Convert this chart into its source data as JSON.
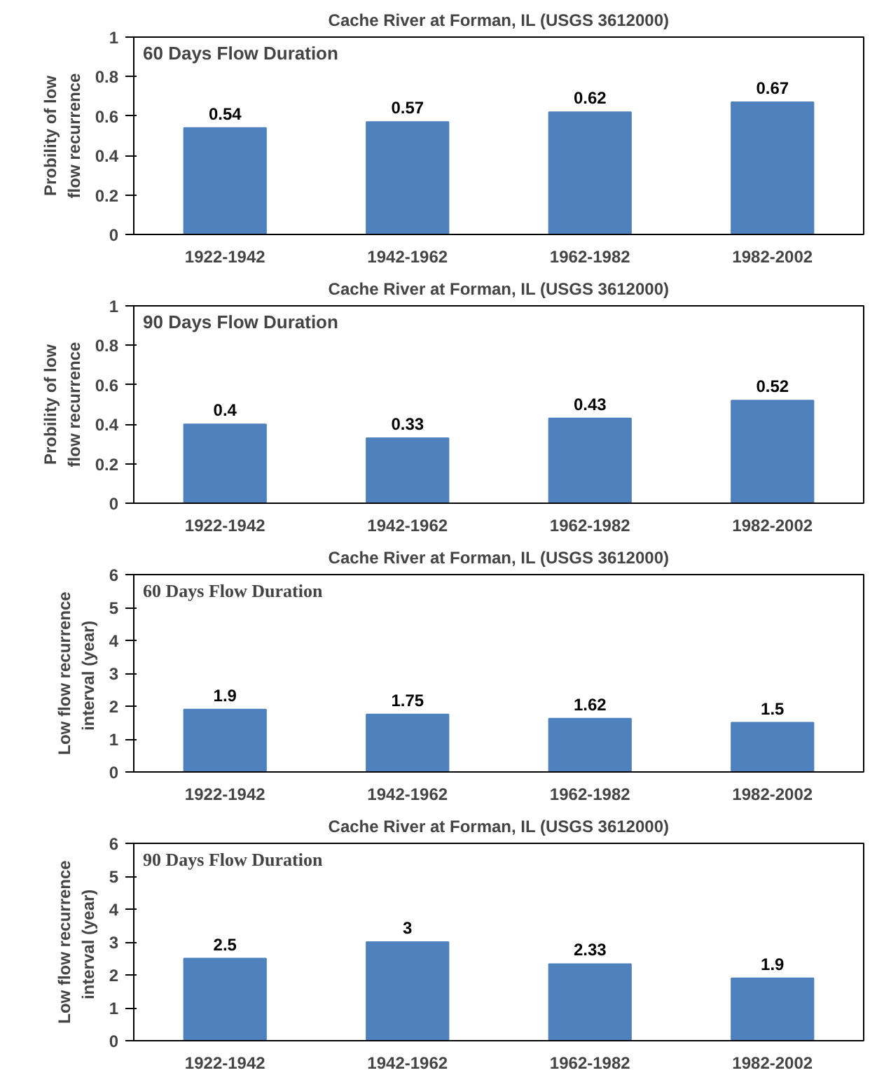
{
  "chart_data": [
    {
      "type": "bar",
      "title": "Cache River at Forman, IL (USGS 3612000)",
      "ylabel": "Probility of low\nflow recurrence",
      "categories": [
        "1922-1942",
        "1942-1962",
        "1962-1982",
        "1982-2002"
      ],
      "values": [
        0.54,
        0.57,
        0.62,
        0.67
      ],
      "color": "#4f81bd",
      "ylim": [
        0,
        1
      ],
      "yticks": [
        0,
        0.2,
        0.4,
        0.6,
        0.8,
        1
      ],
      "data_labels": true,
      "grid": false,
      "legend": false,
      "annotations": [
        "60 Days Flow Duration"
      ]
    },
    {
      "type": "bar",
      "title": "Cache River at Forman, IL (USGS 3612000)",
      "ylabel": "Probility of low\nflow recurrence",
      "categories": [
        "1922-1942",
        "1942-1962",
        "1962-1982",
        "1982-2002"
      ],
      "values": [
        0.4,
        0.33,
        0.43,
        0.52
      ],
      "color": "#4f81bd",
      "ylim": [
        0,
        1
      ],
      "yticks": [
        0,
        0.2,
        0.4,
        0.6,
        0.8,
        1
      ],
      "data_labels": true,
      "grid": false,
      "legend": false,
      "annotations": [
        "90 Days Flow Duration"
      ]
    },
    {
      "type": "bar",
      "title": "Cache River at Forman, IL (USGS 3612000)",
      "ylabel": "Low flow recurrence\ninterval  (year)",
      "categories": [
        "1922-1942",
        "1942-1962",
        "1962-1982",
        "1982-2002"
      ],
      "values": [
        1.9,
        1.75,
        1.62,
        1.5
      ],
      "color": "#4f81bd",
      "ylim": [
        0,
        6
      ],
      "yticks": [
        0,
        1,
        2,
        3,
        4,
        5,
        6
      ],
      "data_labels": true,
      "grid": false,
      "legend": false,
      "annotations": [
        "60 Days Flow Duration"
      ]
    },
    {
      "type": "bar",
      "title": "Cache River at Forman, IL (USGS 3612000)",
      "ylabel": "Low flow recurrence\ninterval  (year)",
      "categories": [
        "1922-1942",
        "1942-1962",
        "1962-1982",
        "1982-2002"
      ],
      "values": [
        2.5,
        3,
        2.33,
        1.9
      ],
      "color": "#4f81bd",
      "ylim": [
        0,
        6
      ],
      "yticks": [
        0,
        1,
        2,
        3,
        4,
        5,
        6
      ],
      "data_labels": true,
      "grid": false,
      "legend": false,
      "annotations": [
        "90 Days Flow Duration"
      ]
    }
  ]
}
